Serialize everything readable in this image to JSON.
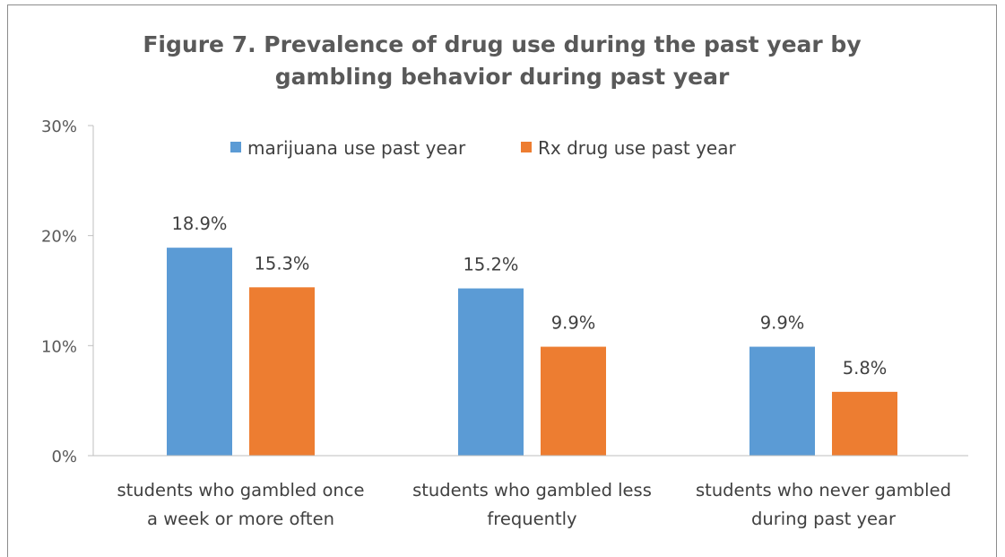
{
  "chart_data": {
    "type": "bar",
    "title": [
      "Figure 7. Prevalence of drug use during the past year by",
      "gambling behavior during past year"
    ],
    "xlabel": "",
    "ylabel": "",
    "ylim": [
      0,
      30
    ],
    "yticks": [
      0,
      10,
      20,
      30
    ],
    "ytick_labels": [
      "0%",
      "10%",
      "20%",
      "30%"
    ],
    "grid": false,
    "legend_position": "top",
    "categories": [
      [
        "students who gambled once",
        "a week or more often"
      ],
      [
        "students who gambled less",
        "frequently"
      ],
      [
        "students who never gambled",
        "during past year"
      ]
    ],
    "series": [
      {
        "name": "marijuana use past year",
        "color": "#5b9bd5",
        "values": [
          18.9,
          15.2,
          9.9
        ],
        "labels": [
          "18.9%",
          "15.2%",
          "9.9%"
        ]
      },
      {
        "name": "Rx drug use past year",
        "color": "#ed7d31",
        "values": [
          15.3,
          9.9,
          5.8
        ],
        "labels": [
          "15.3%",
          "9.9%",
          "5.8%"
        ]
      }
    ]
  }
}
